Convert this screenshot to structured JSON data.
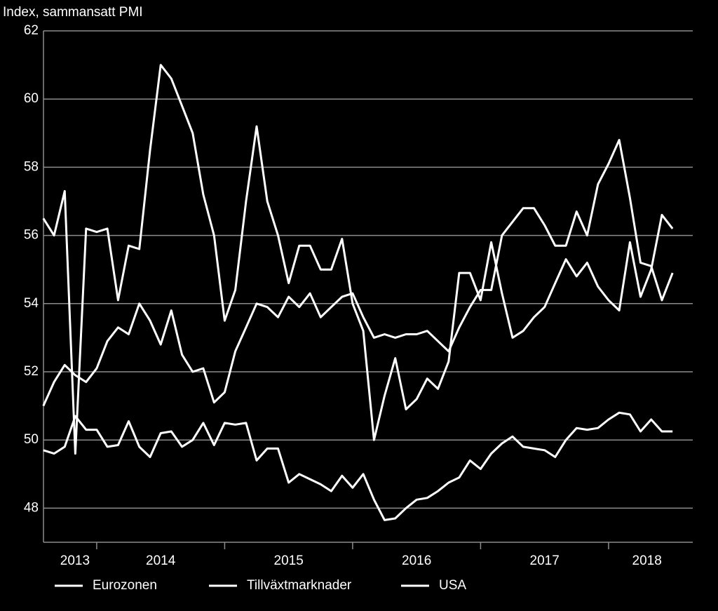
{
  "chart_data": {
    "type": "line",
    "title": "Index, sammansatt PMI",
    "x": [
      2013.583,
      2013.667,
      2013.75,
      2013.833,
      2013.917,
      2014,
      2014.083,
      2014.167,
      2014.25,
      2014.333,
      2014.417,
      2014.5,
      2014.583,
      2014.667,
      2014.75,
      2014.833,
      2014.917,
      2015,
      2015.083,
      2015.167,
      2015.25,
      2015.333,
      2015.417,
      2015.5,
      2015.583,
      2015.667,
      2015.75,
      2015.833,
      2015.917,
      2016,
      2016.083,
      2016.167,
      2016.25,
      2016.333,
      2016.417,
      2016.5,
      2016.583,
      2016.667,
      2016.75,
      2016.833,
      2016.917,
      2017,
      2017.083,
      2017.167,
      2017.25,
      2017.333,
      2017.417,
      2017.5,
      2017.583,
      2017.667,
      2017.75,
      2017.833,
      2017.917,
      2018,
      2018.083,
      2018.167,
      2018.25,
      2018.333,
      2018.417,
      2018.5
    ],
    "series": [
      {
        "name": "Eurozonen",
        "color": "#ffffff",
        "values": [
          51,
          51.7,
          52.2,
          51.9,
          51.7,
          52.1,
          52.9,
          53.3,
          53.1,
          54,
          53.5,
          52.8,
          53.8,
          52.5,
          52,
          52.1,
          51.1,
          51.4,
          52.6,
          53.3,
          54,
          53.9,
          53.6,
          54.2,
          53.9,
          54.3,
          53.6,
          53.9,
          54.2,
          54.3,
          53.6,
          53,
          53.1,
          53,
          53.1,
          53.1,
          53.2,
          52.9,
          52.6,
          53.3,
          53.9,
          54.4,
          54.4,
          56,
          56.4,
          56.8,
          56.8,
          56.3,
          55.7,
          55.7,
          56.7,
          56,
          57.5,
          58.1,
          58.8,
          57.1,
          55.2,
          55.1,
          54.1,
          54.9
        ]
      },
      {
        "name": "Tillväxtmarknader",
        "color": "#ffffff",
        "values": [
          49.7,
          49.6,
          49.8,
          50.7,
          50.3,
          50.3,
          49.8,
          49.85,
          50.55,
          49.8,
          49.5,
          50.2,
          50.25,
          49.8,
          50,
          50.5,
          49.85,
          50.5,
          50.45,
          50.5,
          49.4,
          49.75,
          49.75,
          48.75,
          49,
          48.85,
          48.7,
          48.5,
          48.95,
          48.6,
          49,
          48.25,
          47.65,
          47.7,
          48,
          48.25,
          48.3,
          48.5,
          48.75,
          48.9,
          49.4,
          49.15,
          49.6,
          49.9,
          50.1,
          49.8,
          49.75,
          49.7,
          49.5,
          50,
          50.35,
          50.3,
          50.35,
          50.6,
          50.8,
          50.75,
          50.25,
          50.6,
          50.25,
          50.25
        ]
      },
      {
        "name": "USA",
        "color": "#ffffff",
        "values": [
          56.5,
          56,
          57.3,
          49.6,
          56.2,
          56.1,
          56.2,
          54.1,
          55.7,
          55.6,
          58.5,
          61,
          60.6,
          59.8,
          59,
          57.2,
          56,
          53.5,
          54.4,
          57,
          59.2,
          57,
          56,
          54.6,
          55.7,
          55.7,
          55,
          55,
          55.9,
          54,
          53.2,
          50,
          51.3,
          52.4,
          50.9,
          51.2,
          51.8,
          51.5,
          52.3,
          54.9,
          54.9,
          54.1,
          55.8,
          54.3,
          53,
          53.2,
          53.6,
          53.9,
          54.6,
          55.3,
          54.8,
          55.2,
          54.5,
          54.1,
          53.8,
          55.8,
          54.2,
          55,
          56.6,
          56.2
        ]
      }
    ],
    "xlim": [
      2013.584,
      2018.658
    ],
    "xticks": [
      {
        "value": 2013.83,
        "label": "2013"
      },
      {
        "value": 2014.5,
        "label": "2014"
      },
      {
        "value": 2015.5,
        "label": "2015"
      },
      {
        "value": 2016.5,
        "label": "2016"
      },
      {
        "value": 2017.5,
        "label": "2017"
      },
      {
        "value": 2018.3,
        "label": "2018"
      }
    ],
    "year_ticks": [
      2014,
      2015,
      2016,
      2017,
      2018
    ],
    "ylim": [
      47,
      62
    ],
    "yticks": [
      48,
      50,
      52,
      54,
      56,
      58,
      60,
      62
    ],
    "grid": true
  }
}
